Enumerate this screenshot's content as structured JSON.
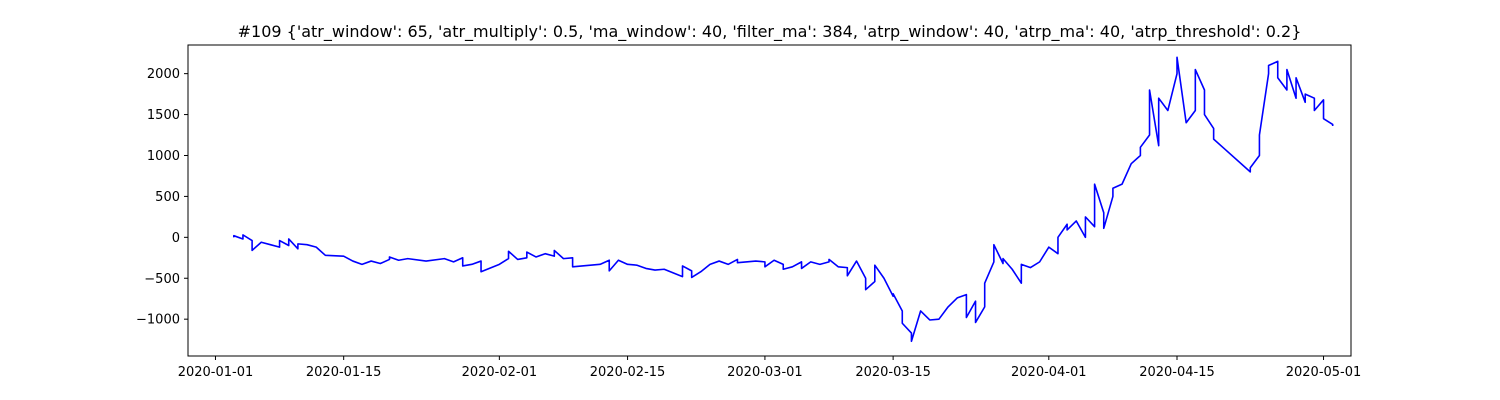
{
  "chart_data": {
    "type": "line",
    "title": "#109 {'atr_window': 65, 'atr_multiply': 0.5, 'ma_window': 40, 'filter_ma': 384, 'atrp_window': 40, 'atrp_ma': 40, 'atrp_threshold': 0.2}",
    "xlabel": "",
    "ylabel": "",
    "xlim": [
      "2019-12-29",
      "2020-05-04"
    ],
    "ylim": [
      -1450,
      2350
    ],
    "x_ticks": [
      "2020-01-01",
      "2020-01-15",
      "2020-02-01",
      "2020-02-15",
      "2020-03-01",
      "2020-03-15",
      "2020-04-01",
      "2020-04-15",
      "2020-05-01"
    ],
    "y_ticks": [
      -1000,
      -500,
      0,
      500,
      1000,
      1500,
      2000
    ],
    "grid": false,
    "series": [
      {
        "color": "#0000ff",
        "points": [
          [
            "2020-01-03",
            0
          ],
          [
            "2020-01-03",
            20
          ],
          [
            "2020-01-04",
            -20
          ],
          [
            "2020-01-04",
            30
          ],
          [
            "2020-01-05",
            -40
          ],
          [
            "2020-01-05",
            -160
          ],
          [
            "2020-01-06",
            -60
          ],
          [
            "2020-01-07",
            -90
          ],
          [
            "2020-01-08",
            -120
          ],
          [
            "2020-01-08",
            -40
          ],
          [
            "2020-01-09",
            -100
          ],
          [
            "2020-01-09",
            -20
          ],
          [
            "2020-01-10",
            -140
          ],
          [
            "2020-01-10",
            -80
          ],
          [
            "2020-01-11",
            -90
          ],
          [
            "2020-01-12",
            -120
          ],
          [
            "2020-01-13",
            -220
          ],
          [
            "2020-01-15",
            -230
          ],
          [
            "2020-01-16",
            -290
          ],
          [
            "2020-01-17",
            -330
          ],
          [
            "2020-01-18",
            -290
          ],
          [
            "2020-01-19",
            -320
          ],
          [
            "2020-01-20",
            -270
          ],
          [
            "2020-01-20",
            -240
          ],
          [
            "2020-01-21",
            -280
          ],
          [
            "2020-01-22",
            -260
          ],
          [
            "2020-01-24",
            -290
          ],
          [
            "2020-01-26",
            -260
          ],
          [
            "2020-01-27",
            -300
          ],
          [
            "2020-01-28",
            -250
          ],
          [
            "2020-01-28",
            -350
          ],
          [
            "2020-01-29",
            -330
          ],
          [
            "2020-01-30",
            -290
          ],
          [
            "2020-01-30",
            -420
          ],
          [
            "2020-02-01",
            -330
          ],
          [
            "2020-02-02",
            -260
          ],
          [
            "2020-02-02",
            -170
          ],
          [
            "2020-02-03",
            -270
          ],
          [
            "2020-02-04",
            -250
          ],
          [
            "2020-02-04",
            -180
          ],
          [
            "2020-02-05",
            -240
          ],
          [
            "2020-02-06",
            -200
          ],
          [
            "2020-02-07",
            -230
          ],
          [
            "2020-02-07",
            -160
          ],
          [
            "2020-02-08",
            -260
          ],
          [
            "2020-02-09",
            -250
          ],
          [
            "2020-02-09",
            -360
          ],
          [
            "2020-02-12",
            -330
          ],
          [
            "2020-02-13",
            -280
          ],
          [
            "2020-02-13",
            -410
          ],
          [
            "2020-02-14",
            -280
          ],
          [
            "2020-02-15",
            -330
          ],
          [
            "2020-02-16",
            -340
          ],
          [
            "2020-02-17",
            -380
          ],
          [
            "2020-02-18",
            -400
          ],
          [
            "2020-02-19",
            -390
          ],
          [
            "2020-02-21",
            -480
          ],
          [
            "2020-02-21",
            -350
          ],
          [
            "2020-02-22",
            -410
          ],
          [
            "2020-02-22",
            -490
          ],
          [
            "2020-02-23",
            -420
          ],
          [
            "2020-02-24",
            -330
          ],
          [
            "2020-02-25",
            -290
          ],
          [
            "2020-02-26",
            -330
          ],
          [
            "2020-02-27",
            -270
          ],
          [
            "2020-02-27",
            -310
          ],
          [
            "2020-02-29",
            -290
          ],
          [
            "2020-03-01",
            -300
          ],
          [
            "2020-03-01",
            -360
          ],
          [
            "2020-03-02",
            -280
          ],
          [
            "2020-03-03",
            -330
          ],
          [
            "2020-03-03",
            -390
          ],
          [
            "2020-03-04",
            -360
          ],
          [
            "2020-03-05",
            -300
          ],
          [
            "2020-03-05",
            -380
          ],
          [
            "2020-03-06",
            -300
          ],
          [
            "2020-03-07",
            -330
          ],
          [
            "2020-03-08",
            -300
          ],
          [
            "2020-03-08",
            -270
          ],
          [
            "2020-03-09",
            -360
          ],
          [
            "2020-03-10",
            -370
          ],
          [
            "2020-03-10",
            -470
          ],
          [
            "2020-03-11",
            -290
          ],
          [
            "2020-03-12",
            -500
          ],
          [
            "2020-03-12",
            -640
          ],
          [
            "2020-03-13",
            -540
          ],
          [
            "2020-03-13",
            -340
          ],
          [
            "2020-03-14",
            -500
          ],
          [
            "2020-03-15",
            -720
          ],
          [
            "2020-03-15",
            -690
          ],
          [
            "2020-03-16",
            -900
          ],
          [
            "2020-03-16",
            -1050
          ],
          [
            "2020-03-17",
            -1170
          ],
          [
            "2020-03-17",
            -1270
          ],
          [
            "2020-03-18",
            -900
          ],
          [
            "2020-03-19",
            -1010
          ],
          [
            "2020-03-20",
            -1000
          ],
          [
            "2020-03-21",
            -850
          ],
          [
            "2020-03-22",
            -740
          ],
          [
            "2020-03-23",
            -700
          ],
          [
            "2020-03-23",
            -980
          ],
          [
            "2020-03-24",
            -780
          ],
          [
            "2020-03-24",
            -1040
          ],
          [
            "2020-03-25",
            -850
          ],
          [
            "2020-03-25",
            -560
          ],
          [
            "2020-03-26",
            -300
          ],
          [
            "2020-03-26",
            -90
          ],
          [
            "2020-03-27",
            -320
          ],
          [
            "2020-03-27",
            -260
          ],
          [
            "2020-03-28",
            -390
          ],
          [
            "2020-03-29",
            -560
          ],
          [
            "2020-03-29",
            -330
          ],
          [
            "2020-03-30",
            -370
          ],
          [
            "2020-03-31",
            -300
          ],
          [
            "2020-04-01",
            -120
          ],
          [
            "2020-04-02",
            -200
          ],
          [
            "2020-04-02",
            0
          ],
          [
            "2020-04-03",
            160
          ],
          [
            "2020-04-03",
            90
          ],
          [
            "2020-04-04",
            200
          ],
          [
            "2020-04-05",
            0
          ],
          [
            "2020-04-05",
            250
          ],
          [
            "2020-04-06",
            130
          ],
          [
            "2020-04-06",
            650
          ],
          [
            "2020-04-07",
            300
          ],
          [
            "2020-04-07",
            110
          ],
          [
            "2020-04-08",
            500
          ],
          [
            "2020-04-08",
            600
          ],
          [
            "2020-04-09",
            650
          ],
          [
            "2020-04-10",
            900
          ],
          [
            "2020-04-11",
            1000
          ],
          [
            "2020-04-11",
            1100
          ],
          [
            "2020-04-12",
            1250
          ],
          [
            "2020-04-12",
            1800
          ],
          [
            "2020-04-13",
            1120
          ],
          [
            "2020-04-13",
            1300
          ],
          [
            "2020-04-13",
            1700
          ],
          [
            "2020-04-14",
            1550
          ],
          [
            "2020-04-15",
            2000
          ],
          [
            "2020-04-15",
            2200
          ],
          [
            "2020-04-16",
            1400
          ],
          [
            "2020-04-17",
            1550
          ],
          [
            "2020-04-17",
            2050
          ],
          [
            "2020-04-18",
            1800
          ],
          [
            "2020-04-18",
            1500
          ],
          [
            "2020-04-19",
            1330
          ],
          [
            "2020-04-19",
            1200
          ],
          [
            "2020-04-20",
            1100
          ],
          [
            "2020-04-23",
            800
          ],
          [
            "2020-04-23",
            850
          ],
          [
            "2020-04-24",
            1000
          ],
          [
            "2020-04-24",
            1250
          ],
          [
            "2020-04-25",
            2000
          ],
          [
            "2020-04-25",
            2100
          ],
          [
            "2020-04-26",
            2150
          ],
          [
            "2020-04-26",
            1950
          ],
          [
            "2020-04-27",
            1800
          ],
          [
            "2020-04-27",
            2050
          ],
          [
            "2020-04-28",
            1700
          ],
          [
            "2020-04-28",
            1950
          ],
          [
            "2020-04-29",
            1650
          ],
          [
            "2020-04-29",
            1750
          ],
          [
            "2020-04-30",
            1700
          ],
          [
            "2020-04-30",
            1550
          ],
          [
            "2020-05-01",
            1680
          ],
          [
            "2020-05-01",
            1450
          ],
          [
            "2020-05-02",
            1380
          ],
          [
            "2020-05-02",
            1360
          ]
        ]
      }
    ]
  }
}
